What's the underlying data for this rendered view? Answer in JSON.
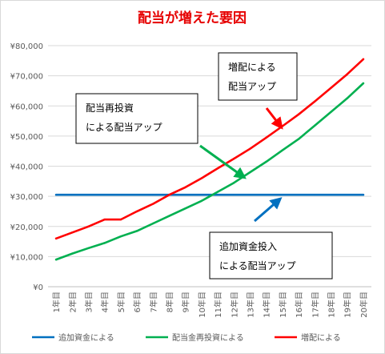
{
  "chart_data": {
    "type": "line",
    "title": "配当が増えた要因",
    "categories": [
      "1年目",
      "2年目",
      "3年目",
      "4年目",
      "5年目",
      "6年目",
      "7年目",
      "8年目",
      "9年目",
      "10年目",
      "11年目",
      "12年目",
      "13年目",
      "14年目",
      "15年目",
      "16年目",
      "17年目",
      "18年目",
      "19年目",
      "20年目"
    ],
    "yticks": [
      "¥0",
      "¥10,000",
      "¥20,000",
      "¥30,000",
      "¥40,000",
      "¥50,000",
      "¥60,000",
      "¥70,000",
      "¥80,000"
    ],
    "ylim": [
      0,
      80000
    ],
    "grid": true,
    "legend_position": "bottom",
    "series": [
      {
        "name": "追加資金による",
        "color": "#0070c0",
        "values": [
          30500,
          30500,
          30500,
          30500,
          30500,
          30500,
          30500,
          30500,
          30500,
          30500,
          30500,
          30500,
          30500,
          30500,
          30500,
          30500,
          30500,
          30500,
          30500,
          30500
        ]
      },
      {
        "name": "配当金再投資による",
        "color": "#00b050",
        "values": [
          9000,
          11000,
          12800,
          14500,
          16700,
          18500,
          21000,
          23500,
          26000,
          28500,
          31500,
          34500,
          38000,
          41500,
          45300,
          49000,
          53500,
          58000,
          62500,
          67500
        ]
      },
      {
        "name": "増配による",
        "color": "#ff0000",
        "values": [
          16000,
          18000,
          20000,
          22300,
          22300,
          25000,
          27500,
          30500,
          33000,
          36000,
          39300,
          42500,
          45800,
          49500,
          53300,
          57200,
          61500,
          66000,
          70500,
          75500
        ]
      }
    ],
    "annotations": [
      {
        "lines": [
          "増配による",
          "配当アップ"
        ],
        "color": "#ff0000"
      },
      {
        "lines": [
          "配当再投資",
          "による配当アップ"
        ],
        "color": "#00b050"
      },
      {
        "lines": [
          "追加資金投入",
          "による配当アップ"
        ],
        "color": "#0070c0"
      }
    ]
  }
}
